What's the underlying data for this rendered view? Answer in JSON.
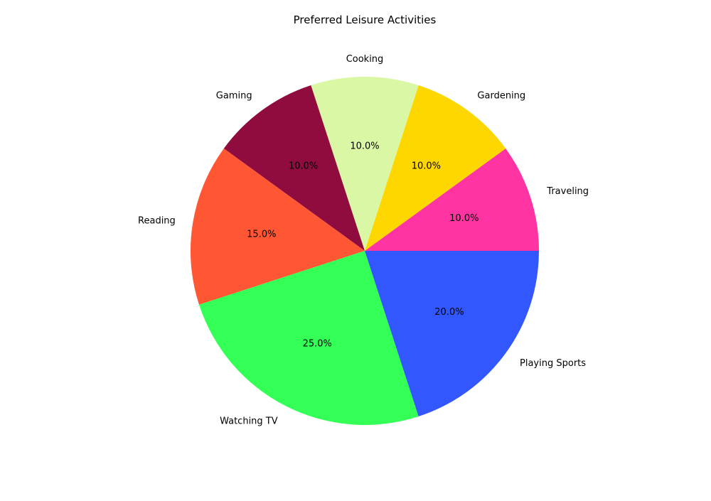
{
  "chart_data": {
    "type": "pie",
    "title": "Preferred Leisure Activities",
    "start_angle_deg": 0,
    "direction": "counterclockwise",
    "slices": [
      {
        "label": "Traveling",
        "value": 10.0,
        "pct_label": "10.0%",
        "color": "#FF33A1"
      },
      {
        "label": "Gardening",
        "value": 10.0,
        "pct_label": "10.0%",
        "color": "#FFD700"
      },
      {
        "label": "Cooking",
        "value": 10.0,
        "pct_label": "10.0%",
        "color": "#DAF7A6"
      },
      {
        "label": "Gaming",
        "value": 10.0,
        "pct_label": "10.0%",
        "color": "#900C3F"
      },
      {
        "label": "Reading",
        "value": 15.0,
        "pct_label": "15.0%",
        "color": "#FF5733"
      },
      {
        "label": "Watching TV",
        "value": 25.0,
        "pct_label": "25.0%",
        "color": "#33FF57"
      },
      {
        "label": "Playing Sports",
        "value": 20.0,
        "pct_label": "20.0%",
        "color": "#3357FF"
      }
    ]
  }
}
